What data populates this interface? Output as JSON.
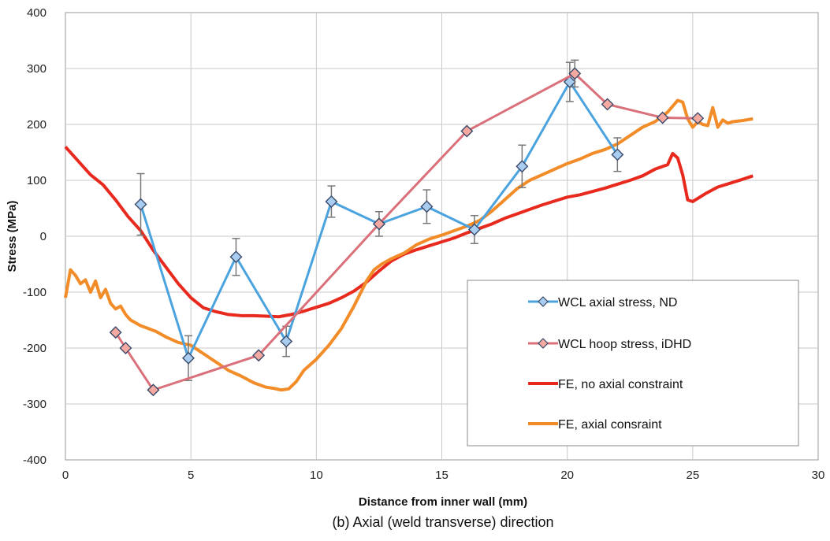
{
  "caption": "(b) Axial (weld transverse) direction",
  "chart_data": {
    "type": "line",
    "title": "",
    "xlabel": "Distance from inner wall (mm)",
    "ylabel": "Stress (MPa)",
    "xlim": [
      0,
      30
    ],
    "ylim": [
      -400,
      400
    ],
    "x_ticks": [
      "0",
      "5",
      "10",
      "15",
      "20",
      "25",
      "30"
    ],
    "y_ticks": [
      "-400",
      "-300",
      "-200",
      "-100",
      "0",
      "100",
      "200",
      "300",
      "400"
    ],
    "grid": true,
    "legend_position": "bottom-right",
    "series": [
      {
        "name": "WCL axial stress, ND",
        "color": "#4aa3df",
        "marker": "diamond",
        "marker_fill": "#a9cdf0",
        "x": [
          3.0,
          4.9,
          6.8,
          8.8,
          10.6,
          12.5,
          14.4,
          16.3,
          18.2,
          20.1,
          22.0
        ],
        "y": [
          57,
          -218,
          -37,
          -188,
          62,
          22,
          53,
          12,
          125,
          276,
          146
        ],
        "error": [
          55,
          40,
          33,
          27,
          28,
          22,
          30,
          25,
          38,
          35,
          30
        ]
      },
      {
        "name": "WCL hoop stress, iDHD",
        "color": "#d9707a",
        "marker": "diamond",
        "marker_fill": "#f5a9a0",
        "x": [
          2.0,
          2.4,
          3.5,
          7.7,
          12.5,
          16.0,
          20.3,
          21.6,
          23.8,
          25.2
        ],
        "y": [
          -172,
          -200,
          -275,
          -213,
          22,
          188,
          291,
          236,
          212,
          211
        ],
        "error_at_index": 6,
        "error_value": 24
      },
      {
        "name": "FE, no axial constraint",
        "color": "#e82a1e",
        "x": [
          0,
          0.5,
          1.0,
          1.5,
          2.0,
          2.5,
          3.0,
          3.5,
          4.0,
          4.5,
          5.0,
          5.5,
          6.0,
          6.5,
          7.0,
          7.5,
          8.0,
          8.5,
          9.0,
          9.5,
          10.0,
          10.5,
          11.0,
          11.5,
          12.0,
          12.5,
          13.0,
          13.5,
          14.0,
          14.5,
          15.0,
          15.5,
          16.0,
          16.5,
          17.0,
          17.5,
          18.0,
          18.5,
          19.0,
          19.5,
          20.0,
          20.5,
          21.0,
          21.5,
          22.0,
          22.5,
          23.0,
          23.5,
          24.0,
          24.2,
          24.4,
          24.6,
          24.8,
          25.0,
          25.5,
          26.0,
          26.5,
          27.0,
          27.4
        ],
        "y": [
          160,
          135,
          110,
          92,
          65,
          35,
          10,
          -25,
          -55,
          -85,
          -110,
          -128,
          -135,
          -140,
          -142,
          -142,
          -143,
          -144,
          -140,
          -134,
          -127,
          -120,
          -110,
          -98,
          -82,
          -62,
          -44,
          -32,
          -24,
          -17,
          -10,
          -3,
          6,
          14,
          22,
          32,
          40,
          48,
          56,
          63,
          70,
          74,
          80,
          86,
          93,
          100,
          108,
          120,
          128,
          148,
          140,
          110,
          65,
          62,
          76,
          88,
          95,
          102,
          108
        ]
      },
      {
        "name": "FE, axial consraint",
        "color": "#f28c28",
        "x": [
          0,
          0.2,
          0.4,
          0.6,
          0.8,
          1.0,
          1.2,
          1.4,
          1.6,
          1.8,
          2.0,
          2.2,
          2.4,
          2.6,
          2.8,
          3.0,
          3.3,
          3.6,
          4.0,
          4.5,
          5.0,
          5.5,
          6.0,
          6.5,
          7.0,
          7.5,
          8.0,
          8.3,
          8.6,
          8.9,
          9.2,
          9.5,
          10.0,
          10.5,
          11.0,
          11.5,
          12.0,
          12.3,
          12.6,
          13.0,
          13.5,
          14.0,
          14.5,
          15.0,
          15.5,
          16.0,
          16.5,
          17.0,
          17.5,
          18.0,
          18.5,
          19.0,
          19.5,
          20.0,
          20.5,
          21.0,
          21.5,
          22.0,
          22.5,
          23.0,
          23.5,
          24.0,
          24.4,
          24.6,
          24.8,
          25.0,
          25.2,
          25.4,
          25.6,
          25.8,
          26.0,
          26.2,
          26.4,
          26.6,
          27.0,
          27.4
        ],
        "y": [
          -110,
          -60,
          -70,
          -85,
          -78,
          -100,
          -80,
          -110,
          -95,
          -120,
          -130,
          -125,
          -140,
          -150,
          -155,
          -160,
          -165,
          -170,
          -180,
          -190,
          -195,
          -210,
          -225,
          -240,
          -250,
          -262,
          -270,
          -272,
          -275,
          -273,
          -260,
          -240,
          -220,
          -195,
          -165,
          -125,
          -80,
          -60,
          -50,
          -40,
          -30,
          -15,
          -5,
          2,
          10,
          18,
          28,
          45,
          65,
          85,
          100,
          110,
          120,
          130,
          138,
          148,
          155,
          165,
          180,
          195,
          205,
          222,
          243,
          240,
          210,
          195,
          205,
          200,
          198,
          230,
          195,
          208,
          202,
          205,
          207,
          210
        ]
      }
    ]
  }
}
